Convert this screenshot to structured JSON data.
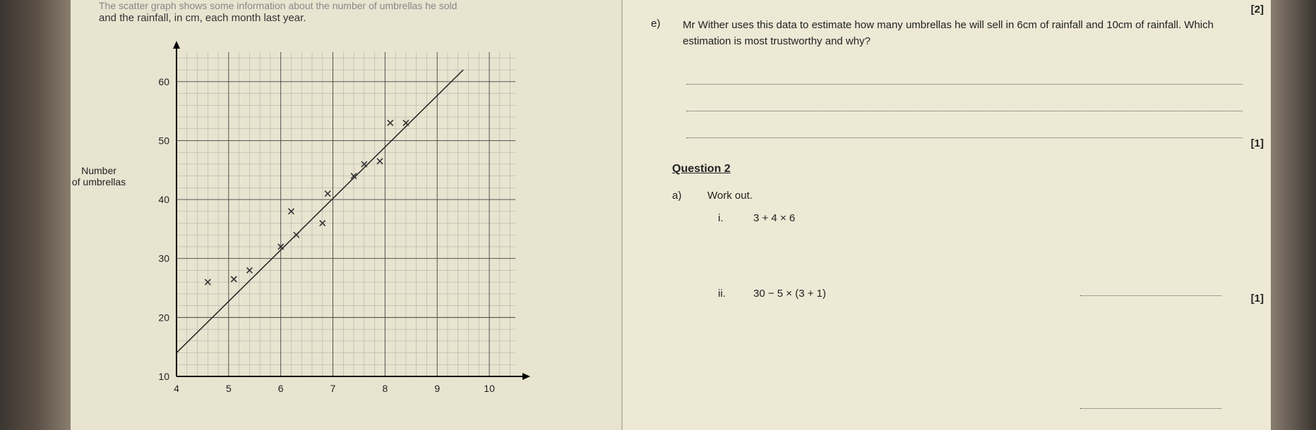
{
  "left_page": {
    "intro_line1_faded": "The scatter graph shows some information about the number of umbrellas he sold",
    "intro_line2": "and the rainfall, in cm, each month last year.",
    "y_axis_label_line1": "Number",
    "y_axis_label_line2": "of umbrellas",
    "chart": {
      "type": "scatter",
      "xlim": [
        4,
        10.5
      ],
      "ylim": [
        10,
        65
      ],
      "xtick_start": 4,
      "xtick_step": 1,
      "xticks": [
        "4",
        "5",
        "6",
        "7",
        "8",
        "9",
        "10"
      ],
      "ytick_start": 10,
      "ytick_step": 10,
      "yticks": [
        "10",
        "20",
        "30",
        "40",
        "50",
        "60"
      ],
      "minor_grid_divisions": 5,
      "points": [
        {
          "x": 4.6,
          "y": 26
        },
        {
          "x": 5.1,
          "y": 26.5
        },
        {
          "x": 5.4,
          "y": 28
        },
        {
          "x": 6.0,
          "y": 32
        },
        {
          "x": 6.2,
          "y": 38
        },
        {
          "x": 6.3,
          "y": 34
        },
        {
          "x": 6.8,
          "y": 36
        },
        {
          "x": 6.9,
          "y": 41
        },
        {
          "x": 7.4,
          "y": 44
        },
        {
          "x": 7.6,
          "y": 46
        },
        {
          "x": 7.9,
          "y": 46.5
        },
        {
          "x": 8.1,
          "y": 53
        },
        {
          "x": 8.4,
          "y": 53
        }
      ],
      "trend_line": {
        "x1": 4.0,
        "y1": 14,
        "x2": 9.5,
        "y2": 62
      },
      "marker": "x",
      "marker_size": 8,
      "marker_color": "#333333",
      "line_color": "#222222",
      "line_width": 1.5,
      "grid_major_color": "#444444",
      "grid_minor_color": "#999999",
      "background_color": "#e8e4d0",
      "axis_color": "#000000",
      "axis_width": 2,
      "label_fontsize": 14,
      "tick_fontsize": 14
    }
  },
  "right_page": {
    "marks_2": "[2]",
    "marks_1a": "[1]",
    "marks_1b": "[1]",
    "q_e_label": "e)",
    "q_e_text": "Mr Wither uses this data to estimate how many umbrellas he will sell in 6cm of rainfall and 10cm of rainfall. Which estimation is most trustworthy and why?",
    "question_2_header": "Question 2",
    "q_a_label": "a)",
    "q_a_text": "Work out.",
    "roman_i_label": "i.",
    "roman_i_expr": "3 + 4 × 6",
    "roman_ii_label": "ii.",
    "roman_ii_expr": "30 − 5 × (3 + 1)"
  }
}
